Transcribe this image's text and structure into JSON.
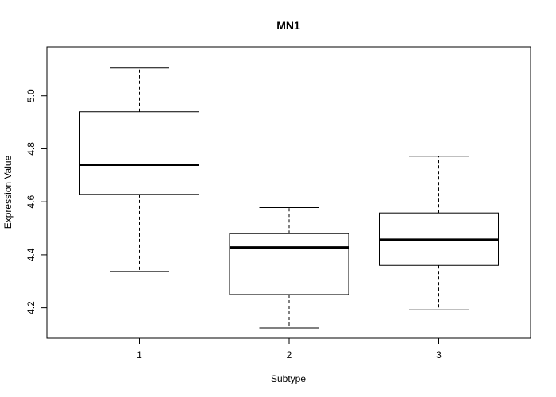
{
  "chart_data": {
    "type": "boxplot",
    "title": "MN1",
    "xlabel": "Subtype",
    "ylabel": "Expression Value",
    "categories": [
      "1",
      "2",
      "3"
    ],
    "ylim": [
      4.085,
      5.185
    ],
    "yticks": [
      4.2,
      4.4,
      4.6,
      4.8,
      5.0
    ],
    "ytick_labels": [
      "4.2",
      "4.4",
      "4.6",
      "4.8",
      "5.0"
    ],
    "grid": false,
    "boxes": [
      {
        "category": "1",
        "whisker_low": 4.337,
        "q1": 4.628,
        "median": 4.74,
        "q3": 4.94,
        "whisker_high": 5.105
      },
      {
        "category": "2",
        "whisker_low": 4.124,
        "q1": 4.25,
        "median": 4.428,
        "q3": 4.48,
        "whisker_high": 4.578
      },
      {
        "category": "3",
        "whisker_low": 4.192,
        "q1": 4.36,
        "median": 4.457,
        "q3": 4.558,
        "whisker_high": 4.772
      }
    ]
  }
}
